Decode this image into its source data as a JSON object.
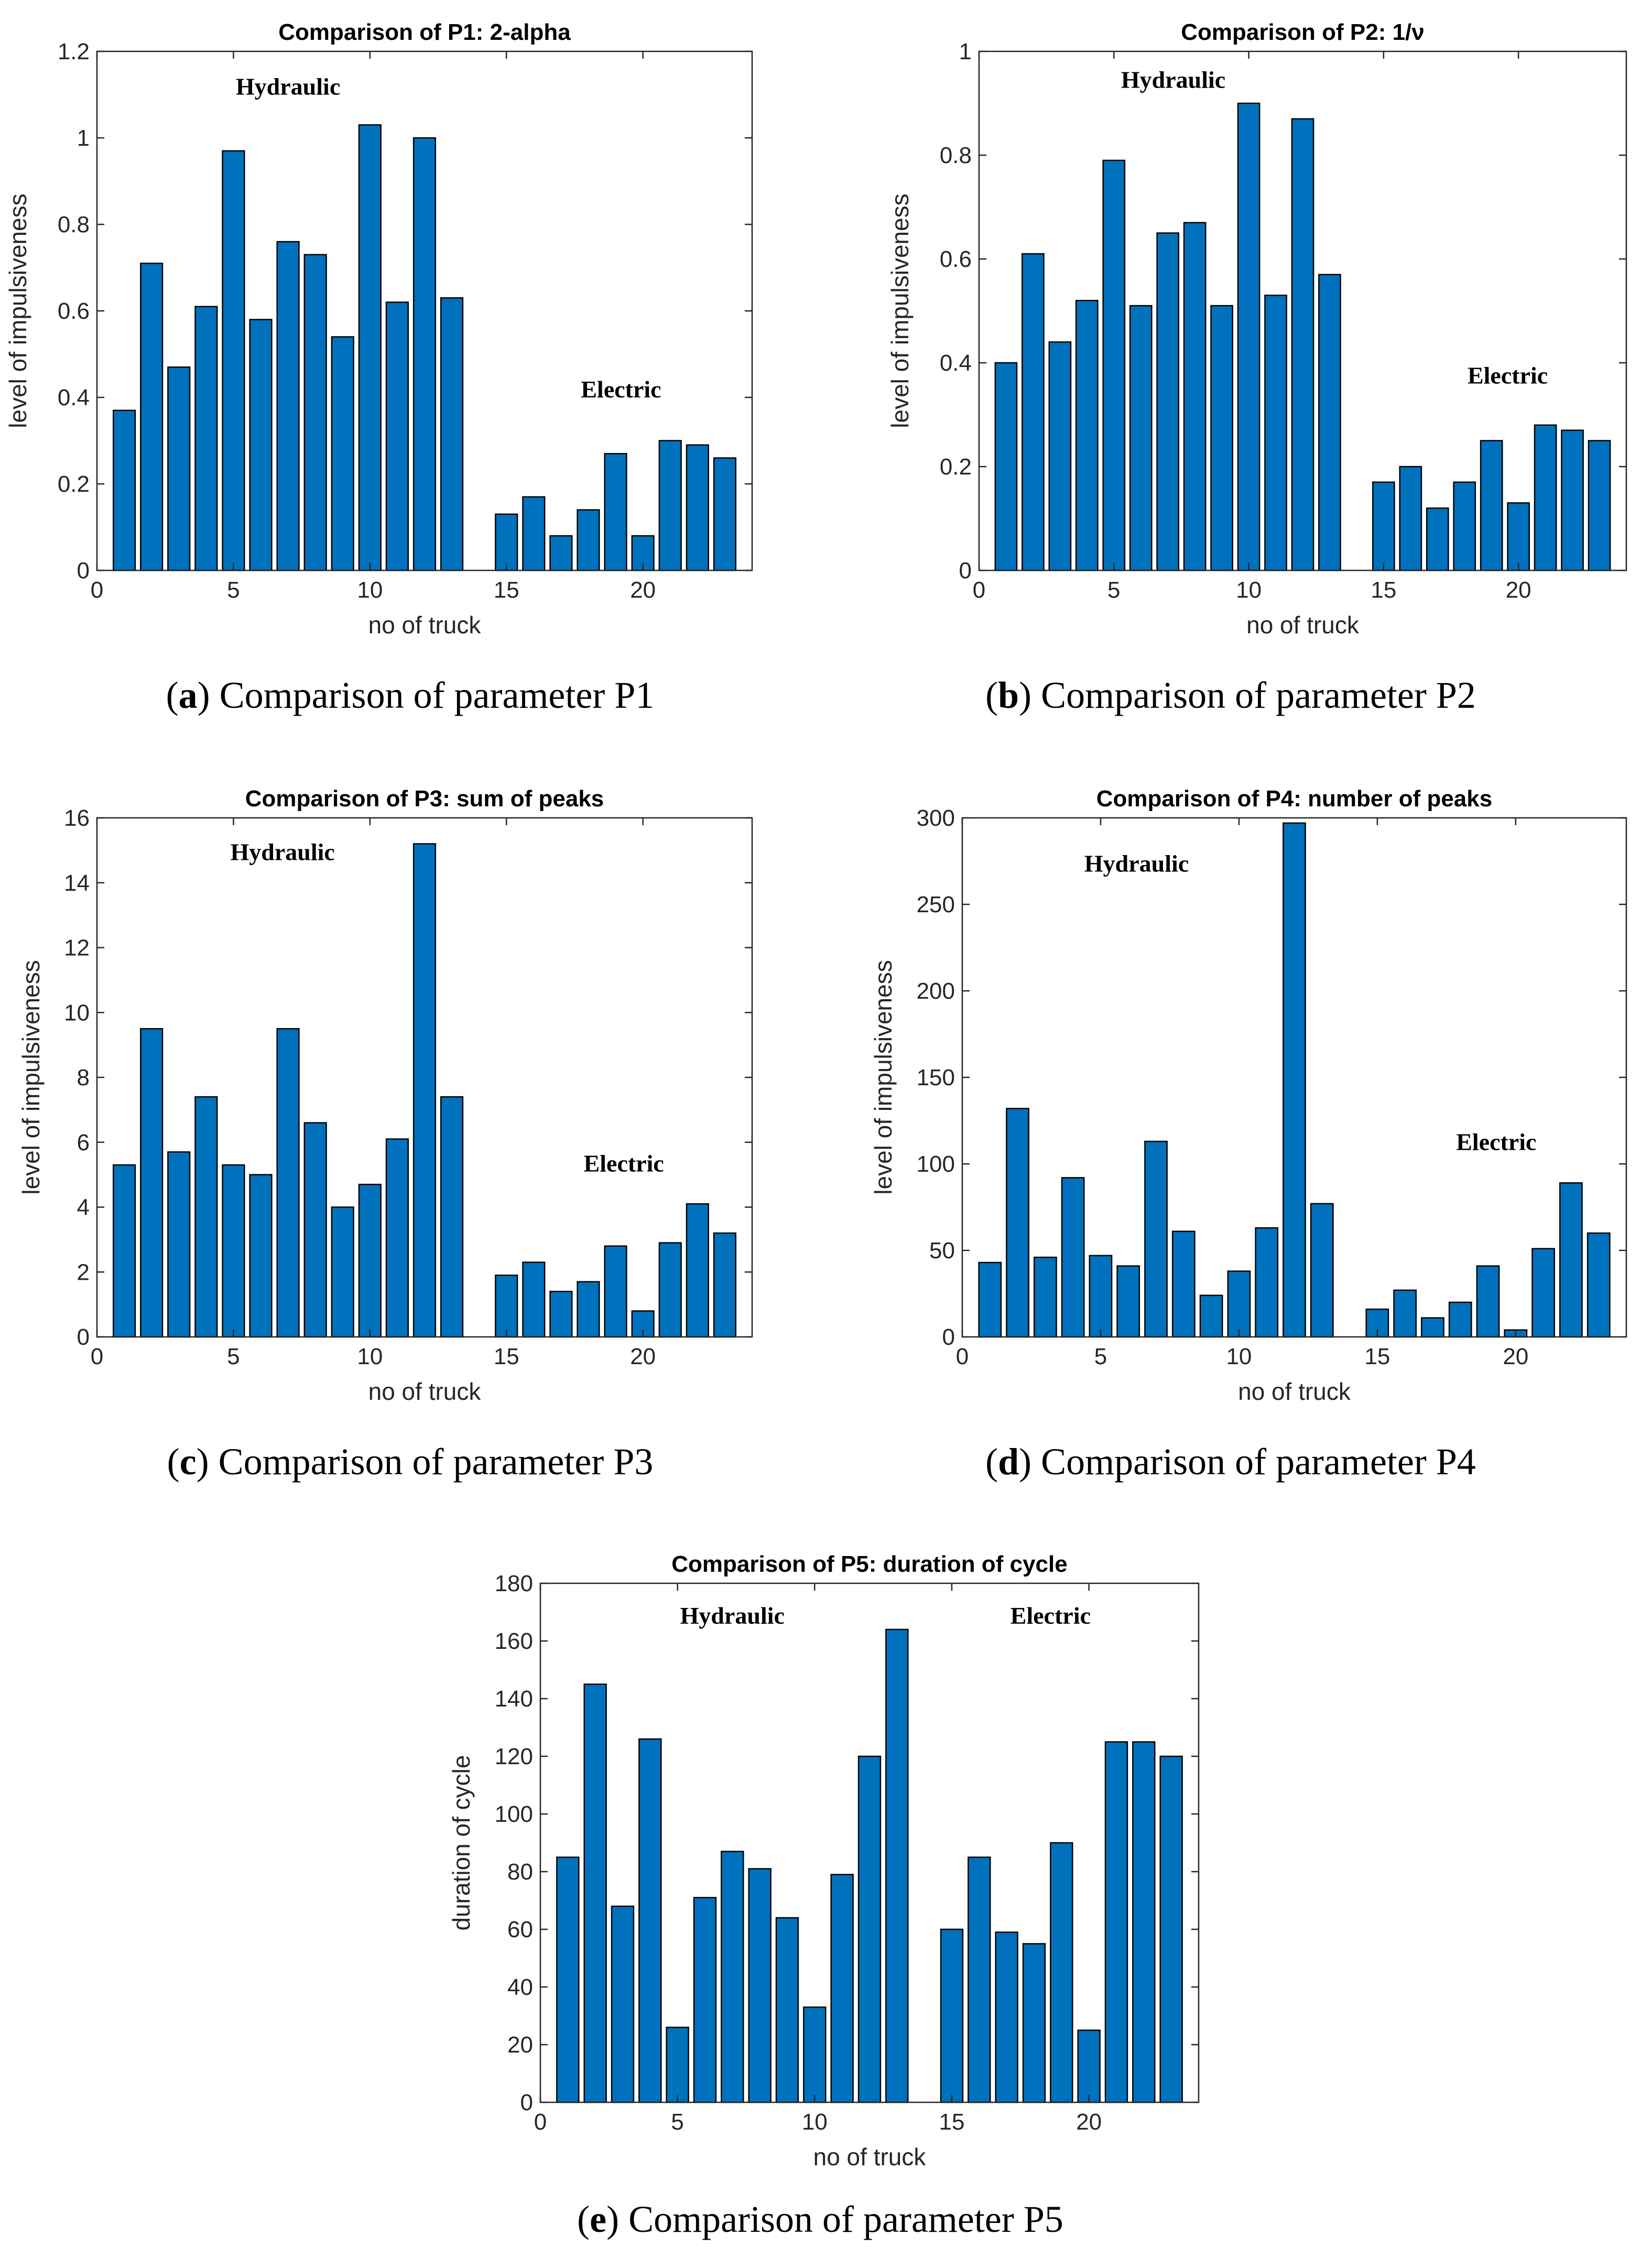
{
  "chart_data": [
    {
      "id": "p1",
      "type": "bar",
      "title": "Comparison of P1:  2-alpha",
      "xlabel": "no of truck",
      "ylabel": "level of impulsiveness",
      "x": [
        1,
        2,
        3,
        4,
        5,
        6,
        7,
        8,
        9,
        10,
        11,
        12,
        13,
        15,
        16,
        17,
        18,
        19,
        20,
        21,
        22,
        23
      ],
      "values": [
        0.37,
        0.71,
        0.47,
        0.61,
        0.97,
        0.58,
        0.76,
        0.73,
        0.54,
        1.03,
        0.62,
        1.0,
        0.63,
        0.13,
        0.17,
        0.08,
        0.14,
        0.27,
        0.08,
        0.3,
        0.29,
        0.26
      ],
      "xlim": [
        0,
        24
      ],
      "ylim": [
        0,
        1.2
      ],
      "xticks": [
        0,
        5,
        10,
        15,
        20
      ],
      "yticks": [
        0,
        0.2,
        0.4,
        0.6,
        0.8,
        1,
        1.2
      ],
      "ytick_labels": [
        "0",
        "0.2",
        "0.4",
        "0.6",
        "0.8",
        "1",
        "1.2"
      ],
      "annotations": [
        {
          "text": "Hydraulic",
          "x": 7,
          "y": 1.1
        },
        {
          "text": "Electric",
          "x": 19.2,
          "y": 0.4
        }
      ],
      "caption": {
        "letter": "a",
        "text": " Comparison of parameter P1"
      }
    },
    {
      "id": "p2",
      "type": "bar",
      "title": "Comparison of P2:  1/ν",
      "xlabel": "no of truck",
      "ylabel": "level of impulsiveness",
      "x": [
        1,
        2,
        3,
        4,
        5,
        6,
        7,
        8,
        9,
        10,
        11,
        12,
        13,
        15,
        16,
        17,
        18,
        19,
        20,
        21,
        22,
        23
      ],
      "values": [
        0.4,
        0.61,
        0.44,
        0.52,
        0.79,
        0.51,
        0.65,
        0.67,
        0.51,
        0.9,
        0.53,
        0.87,
        0.57,
        0.17,
        0.2,
        0.12,
        0.17,
        0.25,
        0.13,
        0.28,
        0.27,
        0.25
      ],
      "xlim": [
        0,
        24
      ],
      "ylim": [
        0,
        1
      ],
      "xticks": [
        0,
        5,
        10,
        15,
        20
      ],
      "yticks": [
        0,
        0.2,
        0.4,
        0.6,
        0.8,
        1
      ],
      "ytick_labels": [
        "0",
        "0.2",
        "0.4",
        "0.6",
        "0.8",
        "1"
      ],
      "annotations": [
        {
          "text": "Hydraulic",
          "x": 7.2,
          "y": 0.93
        },
        {
          "text": "Electric",
          "x": 19.6,
          "y": 0.36
        }
      ],
      "caption": {
        "letter": "b",
        "text": " Comparison of parameter P2"
      }
    },
    {
      "id": "p3",
      "type": "bar",
      "title": "Comparison of P3:  sum of peaks",
      "xlabel": "no of truck",
      "ylabel": "level of impulsiveness",
      "x": [
        1,
        2,
        3,
        4,
        5,
        6,
        7,
        8,
        9,
        10,
        11,
        12,
        13,
        15,
        16,
        17,
        18,
        19,
        20,
        21,
        22,
        23
      ],
      "values": [
        5.3,
        9.5,
        5.7,
        7.4,
        5.3,
        5.0,
        9.5,
        6.6,
        4.0,
        4.7,
        6.1,
        15.2,
        7.4,
        1.9,
        2.3,
        1.4,
        1.7,
        2.8,
        0.8,
        2.9,
        4.1,
        3.2
      ],
      "xlim": [
        0,
        24
      ],
      "ylim": [
        0,
        16
      ],
      "xticks": [
        0,
        5,
        10,
        15,
        20
      ],
      "yticks": [
        0,
        2,
        4,
        6,
        8,
        10,
        12,
        14,
        16
      ],
      "ytick_labels": [
        "0",
        "2",
        "4",
        "6",
        "8",
        "10",
        "12",
        "14",
        "16"
      ],
      "annotations": [
        {
          "text": "Hydraulic",
          "x": 6.8,
          "y": 14.7
        },
        {
          "text": "Electric",
          "x": 19.3,
          "y": 5.1
        }
      ],
      "caption": {
        "letter": "c",
        "text": " Comparison of parameter P3"
      }
    },
    {
      "id": "p4",
      "type": "bar",
      "title": "Comparison of P4:  number of peaks",
      "xlabel": "no of truck",
      "ylabel": "level of impulsiveness",
      "x": [
        1,
        2,
        3,
        4,
        5,
        6,
        7,
        8,
        9,
        10,
        11,
        12,
        13,
        15,
        16,
        17,
        18,
        19,
        20,
        21,
        22,
        23
      ],
      "values": [
        43,
        132,
        46,
        92,
        47,
        41,
        113,
        61,
        24,
        38,
        63,
        297,
        77,
        16,
        27,
        11,
        20,
        41,
        4,
        51,
        89,
        60
      ],
      "xlim": [
        0,
        24
      ],
      "ylim": [
        0,
        300
      ],
      "xticks": [
        0,
        5,
        10,
        15,
        20
      ],
      "yticks": [
        0,
        50,
        100,
        150,
        200,
        250,
        300
      ],
      "ytick_labels": [
        "0",
        "50",
        "100",
        "150",
        "200",
        "250",
        "300"
      ],
      "annotations": [
        {
          "text": "Hydraulic",
          "x": 6.3,
          "y": 269
        },
        {
          "text": "Electric",
          "x": 19.3,
          "y": 108
        }
      ],
      "caption": {
        "letter": "d",
        "text": " Comparison of parameter P4"
      }
    },
    {
      "id": "p5",
      "type": "bar",
      "title": "Comparison of P5:  duration of cycle",
      "xlabel": "no of truck",
      "ylabel": "duration of cycle",
      "x": [
        1,
        2,
        3,
        4,
        5,
        6,
        7,
        8,
        9,
        10,
        11,
        12,
        13,
        15,
        16,
        17,
        18,
        19,
        20,
        21,
        22,
        23
      ],
      "values": [
        85,
        145,
        68,
        126,
        26,
        71,
        87,
        81,
        64,
        33,
        79,
        120,
        164,
        60,
        85,
        59,
        55,
        90,
        25,
        125,
        125,
        120
      ],
      "xlim": [
        0,
        24
      ],
      "ylim": [
        0,
        180
      ],
      "xticks": [
        0,
        5,
        10,
        15,
        20
      ],
      "yticks": [
        0,
        20,
        40,
        60,
        80,
        100,
        120,
        140,
        160,
        180
      ],
      "ytick_labels": [
        "0",
        "20",
        "40",
        "60",
        "80",
        "100",
        "120",
        "140",
        "160",
        "180"
      ],
      "annotations": [
        {
          "text": "Hydraulic",
          "x": 7,
          "y": 166
        },
        {
          "text": "Electric",
          "x": 18.6,
          "y": 166
        }
      ],
      "caption": {
        "letter": "e",
        "text": " Comparison of parameter P5"
      }
    }
  ],
  "colors": {
    "bar_fill": "#0072BD",
    "bar_stroke": "#000000",
    "axis": "#262626"
  }
}
